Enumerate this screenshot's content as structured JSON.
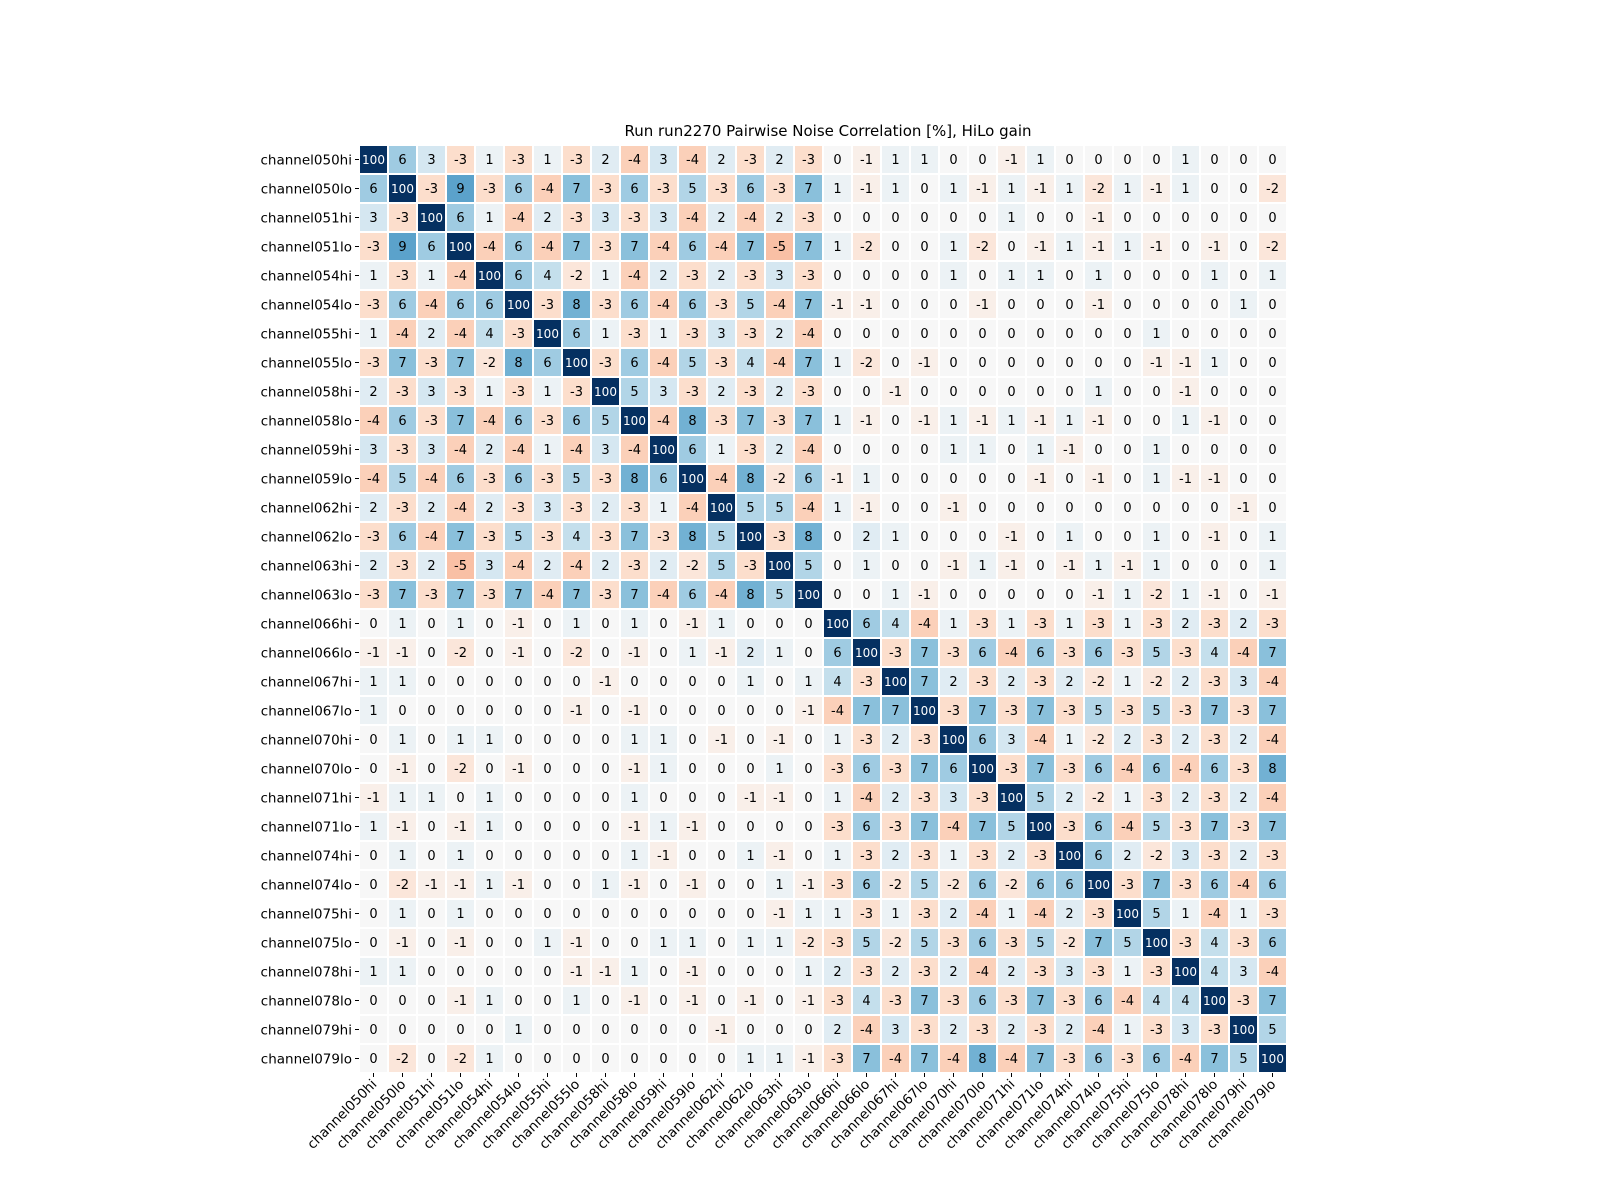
{
  "chart_data": {
    "type": "heatmap",
    "title": "Run run2270 Pairwise Noise Correlation [%], HiLo gain",
    "xlabel": "",
    "ylabel": "",
    "color_scale": {
      "min": -100,
      "max": 100,
      "colormap": "RdBu diverging (negative = red/orange, positive = blue)",
      "diagonal_color": "#053061"
    },
    "labels": [
      "channel050hi",
      "channel050lo",
      "channel051hi",
      "channel051lo",
      "channel054hi",
      "channel054lo",
      "channel055hi",
      "channel055lo",
      "channel058hi",
      "channel058lo",
      "channel059hi",
      "channel059lo",
      "channel062hi",
      "channel062lo",
      "channel063hi",
      "channel063lo",
      "channel066hi",
      "channel066lo",
      "channel067hi",
      "channel067lo",
      "channel070hi",
      "channel070lo",
      "channel071hi",
      "channel071lo",
      "channel074hi",
      "channel074lo",
      "channel075hi",
      "channel075lo",
      "channel078hi",
      "channel078lo",
      "channel079hi",
      "channel079lo"
    ],
    "values": [
      [
        100,
        6,
        3,
        -3,
        1,
        -3,
        1,
        -3,
        2,
        -4,
        3,
        -4,
        2,
        -3,
        2,
        -3,
        0,
        -1,
        1,
        1,
        0,
        0,
        -1,
        1,
        0,
        0,
        0,
        0,
        1,
        0,
        0,
        0
      ],
      [
        6,
        100,
        -3,
        9,
        -3,
        6,
        -4,
        7,
        -3,
        6,
        -3,
        5,
        -3,
        6,
        -3,
        7,
        1,
        -1,
        1,
        0,
        1,
        -1,
        1,
        -1,
        1,
        -2,
        1,
        -1,
        1,
        0,
        0,
        -2
      ],
      [
        3,
        -3,
        100,
        6,
        1,
        -4,
        2,
        -3,
        3,
        -3,
        3,
        -4,
        2,
        -4,
        2,
        -3,
        0,
        0,
        0,
        0,
        0,
        0,
        1,
        0,
        0,
        -1,
        0,
        0,
        0,
        0,
        0,
        0
      ],
      [
        -3,
        9,
        6,
        100,
        -4,
        6,
        -4,
        7,
        -3,
        7,
        -4,
        6,
        -4,
        7,
        -5,
        7,
        1,
        -2,
        0,
        0,
        1,
        -2,
        0,
        -1,
        1,
        -1,
        1,
        -1,
        0,
        -1,
        0,
        -2
      ],
      [
        1,
        -3,
        1,
        -4,
        100,
        6,
        4,
        -2,
        1,
        -4,
        2,
        -3,
        2,
        -3,
        3,
        -3,
        0,
        0,
        0,
        0,
        1,
        0,
        1,
        1,
        0,
        1,
        0,
        0,
        0,
        1,
        0,
        1
      ],
      [
        -3,
        6,
        -4,
        6,
        6,
        100,
        -3,
        8,
        -3,
        6,
        -4,
        6,
        -3,
        5,
        -4,
        7,
        -1,
        -1,
        0,
        0,
        0,
        -1,
        0,
        0,
        0,
        -1,
        0,
        0,
        0,
        0,
        1,
        0
      ],
      [
        1,
        -4,
        2,
        -4,
        4,
        -3,
        100,
        6,
        1,
        -3,
        1,
        -3,
        3,
        -3,
        2,
        -4,
        0,
        0,
        0,
        0,
        0,
        0,
        0,
        0,
        0,
        0,
        0,
        1,
        0,
        0,
        0,
        0
      ],
      [
        -3,
        7,
        -3,
        7,
        -2,
        8,
        6,
        100,
        -3,
        6,
        -4,
        5,
        -3,
        4,
        -4,
        7,
        1,
        -2,
        0,
        -1,
        0,
        0,
        0,
        0,
        0,
        0,
        0,
        -1,
        -1,
        1,
        0,
        0
      ],
      [
        2,
        -3,
        3,
        -3,
        1,
        -3,
        1,
        -3,
        100,
        5,
        3,
        -3,
        2,
        -3,
        2,
        -3,
        0,
        0,
        -1,
        0,
        0,
        0,
        0,
        0,
        0,
        1,
        0,
        0,
        -1,
        0,
        0,
        0
      ],
      [
        -4,
        6,
        -3,
        7,
        -4,
        6,
        -3,
        6,
        5,
        100,
        -4,
        8,
        -3,
        7,
        -3,
        7,
        1,
        -1,
        0,
        -1,
        1,
        -1,
        1,
        -1,
        1,
        -1,
        0,
        0,
        1,
        -1,
        0,
        0
      ],
      [
        3,
        -3,
        3,
        -4,
        2,
        -4,
        1,
        -4,
        3,
        -4,
        100,
        6,
        1,
        -3,
        2,
        -4,
        0,
        0,
        0,
        0,
        1,
        1,
        0,
        1,
        -1,
        0,
        0,
        1,
        0,
        0,
        0,
        0
      ],
      [
        -4,
        5,
        -4,
        6,
        -3,
        6,
        -3,
        5,
        -3,
        8,
        6,
        100,
        -4,
        8,
        -2,
        6,
        -1,
        1,
        0,
        0,
        0,
        0,
        0,
        -1,
        0,
        -1,
        0,
        1,
        -1,
        -1,
        0,
        0
      ],
      [
        2,
        -3,
        2,
        -4,
        2,
        -3,
        3,
        -3,
        2,
        -3,
        1,
        -4,
        100,
        5,
        5,
        -4,
        1,
        -1,
        0,
        0,
        -1,
        0,
        0,
        0,
        0,
        0,
        0,
        0,
        0,
        0,
        -1,
        0
      ],
      [
        -3,
        6,
        -4,
        7,
        -3,
        5,
        -3,
        4,
        -3,
        7,
        -3,
        8,
        5,
        100,
        -3,
        8,
        0,
        2,
        1,
        0,
        0,
        0,
        -1,
        0,
        1,
        0,
        0,
        1,
        0,
        -1,
        0,
        1
      ],
      [
        2,
        -3,
        2,
        -5,
        3,
        -4,
        2,
        -4,
        2,
        -3,
        2,
        -2,
        5,
        -3,
        100,
        5,
        0,
        1,
        0,
        0,
        -1,
        1,
        -1,
        0,
        -1,
        1,
        -1,
        1,
        0,
        0,
        0,
        1
      ],
      [
        -3,
        7,
        -3,
        7,
        -3,
        7,
        -4,
        7,
        -3,
        7,
        -4,
        6,
        -4,
        8,
        5,
        100,
        0,
        0,
        1,
        -1,
        0,
        0,
        0,
        0,
        0,
        -1,
        1,
        -2,
        1,
        -1,
        0,
        -1
      ],
      [
        0,
        1,
        0,
        1,
        0,
        -1,
        0,
        1,
        0,
        1,
        0,
        -1,
        1,
        0,
        0,
        0,
        100,
        6,
        4,
        -4,
        1,
        -3,
        1,
        -3,
        1,
        -3,
        1,
        -3,
        2,
        -3,
        2,
        -3
      ],
      [
        -1,
        -1,
        0,
        -2,
        0,
        -1,
        0,
        -2,
        0,
        -1,
        0,
        1,
        -1,
        2,
        1,
        0,
        6,
        100,
        -3,
        7,
        -3,
        6,
        -4,
        6,
        -3,
        6,
        -3,
        5,
        -3,
        4,
        -4,
        7
      ],
      [
        1,
        1,
        0,
        0,
        0,
        0,
        0,
        0,
        -1,
        0,
        0,
        0,
        0,
        1,
        0,
        1,
        4,
        -3,
        100,
        7,
        2,
        -3,
        2,
        -3,
        2,
        -2,
        1,
        -2,
        2,
        -3,
        3,
        -4
      ],
      [
        1,
        0,
        0,
        0,
        0,
        0,
        0,
        -1,
        0,
        -1,
        0,
        0,
        0,
        0,
        0,
        -1,
        -4,
        7,
        7,
        100,
        -3,
        7,
        -3,
        7,
        -3,
        5,
        -3,
        5,
        -3,
        7,
        -3,
        7
      ],
      [
        0,
        1,
        0,
        1,
        1,
        0,
        0,
        0,
        0,
        1,
        1,
        0,
        -1,
        0,
        -1,
        0,
        1,
        -3,
        2,
        -3,
        100,
        6,
        3,
        -4,
        1,
        -2,
        2,
        -3,
        2,
        -3,
        2,
        -4
      ],
      [
        0,
        -1,
        0,
        -2,
        0,
        -1,
        0,
        0,
        0,
        -1,
        1,
        0,
        0,
        0,
        1,
        0,
        -3,
        6,
        -3,
        7,
        6,
        100,
        -3,
        7,
        -3,
        6,
        -4,
        6,
        -4,
        6,
        -3,
        8
      ],
      [
        -1,
        1,
        1,
        0,
        1,
        0,
        0,
        0,
        0,
        1,
        0,
        0,
        0,
        -1,
        -1,
        0,
        1,
        -4,
        2,
        -3,
        3,
        -3,
        100,
        5,
        2,
        -2,
        1,
        -3,
        2,
        -3,
        2,
        -4
      ],
      [
        1,
        -1,
        0,
        -1,
        1,
        0,
        0,
        0,
        0,
        -1,
        1,
        -1,
        0,
        0,
        0,
        0,
        -3,
        6,
        -3,
        7,
        -4,
        7,
        5,
        100,
        -3,
        6,
        -4,
        5,
        -3,
        7,
        -3,
        7
      ],
      [
        0,
        1,
        0,
        1,
        0,
        0,
        0,
        0,
        0,
        1,
        -1,
        0,
        0,
        1,
        -1,
        0,
        1,
        -3,
        2,
        -3,
        1,
        -3,
        2,
        -3,
        100,
        6,
        2,
        -2,
        3,
        -3,
        2,
        -3
      ],
      [
        0,
        -2,
        -1,
        -1,
        1,
        -1,
        0,
        0,
        1,
        -1,
        0,
        -1,
        0,
        0,
        1,
        -1,
        -3,
        6,
        -2,
        5,
        -2,
        6,
        -2,
        6,
        6,
        100,
        -3,
        7,
        -3,
        6,
        -4,
        6
      ],
      [
        0,
        1,
        0,
        1,
        0,
        0,
        0,
        0,
        0,
        0,
        0,
        0,
        0,
        0,
        -1,
        1,
        1,
        -3,
        1,
        -3,
        2,
        -4,
        1,
        -4,
        2,
        -3,
        100,
        5,
        1,
        -4,
        1,
        -3
      ],
      [
        0,
        -1,
        0,
        -1,
        0,
        0,
        1,
        -1,
        0,
        0,
        1,
        1,
        0,
        1,
        1,
        -2,
        -3,
        5,
        -2,
        5,
        -3,
        6,
        -3,
        5,
        -2,
        7,
        5,
        100,
        -3,
        4,
        -3,
        6
      ],
      [
        1,
        1,
        0,
        0,
        0,
        0,
        0,
        -1,
        -1,
        1,
        0,
        -1,
        0,
        0,
        0,
        1,
        2,
        -3,
        2,
        -3,
        2,
        -4,
        2,
        -3,
        3,
        -3,
        1,
        -3,
        100,
        4,
        3,
        -4
      ],
      [
        0,
        0,
        0,
        -1,
        1,
        0,
        0,
        1,
        0,
        -1,
        0,
        -1,
        0,
        -1,
        0,
        -1,
        -3,
        4,
        -3,
        7,
        -3,
        6,
        -3,
        7,
        -3,
        6,
        -4,
        4,
        4,
        100,
        -3,
        7
      ],
      [
        0,
        0,
        0,
        0,
        0,
        1,
        0,
        0,
        0,
        0,
        0,
        0,
        -1,
        0,
        0,
        0,
        2,
        -4,
        3,
        -3,
        2,
        -3,
        2,
        -3,
        2,
        -4,
        1,
        -3,
        3,
        -3,
        100,
        5
      ],
      [
        0,
        -2,
        0,
        -2,
        1,
        0,
        0,
        0,
        0,
        0,
        0,
        0,
        0,
        1,
        1,
        -1,
        -3,
        7,
        -4,
        7,
        -4,
        8,
        -4,
        7,
        -3,
        6,
        -3,
        6,
        -4,
        7,
        5,
        100
      ]
    ]
  }
}
